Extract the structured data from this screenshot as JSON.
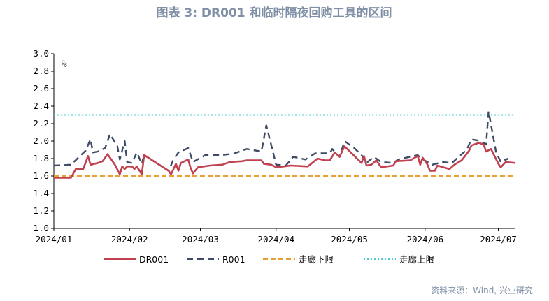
{
  "chart_data": {
    "type": "line",
    "title": "图表 3:   DR001 和临时隔夜回购工具的区间",
    "ylabel": "%",
    "ylim": [
      1.0,
      3.0
    ],
    "yticks": [
      "1.0",
      "1.2",
      "1.4",
      "1.6",
      "1.8",
      "2.0",
      "2.2",
      "2.4",
      "2.6",
      "2.8",
      "3.0"
    ],
    "x_unit": "days since 2024-01-01",
    "xlim": [
      0,
      189
    ],
    "xticks": [
      {
        "label": "2024/01",
        "day": 0
      },
      {
        "label": "2024/02",
        "day": 31
      },
      {
        "label": "2024/03",
        "day": 60
      },
      {
        "label": "2024/04",
        "day": 91
      },
      {
        "label": "2024/05",
        "day": 121
      },
      {
        "label": "2024/06",
        "day": 152
      },
      {
        "label": "2024/07",
        "day": 182
      }
    ],
    "series": [
      {
        "name": "DR001",
        "color": "#c0414f",
        "style": "solid",
        "points": [
          [
            0,
            1.58
          ],
          [
            5,
            1.58
          ],
          [
            7,
            1.58
          ],
          [
            9,
            1.68
          ],
          [
            12,
            1.68
          ],
          [
            14,
            1.83
          ],
          [
            15,
            1.73
          ],
          [
            18,
            1.75
          ],
          [
            20,
            1.77
          ],
          [
            22,
            1.85
          ],
          [
            25,
            1.73
          ],
          [
            27,
            1.62
          ],
          [
            28,
            1.71
          ],
          [
            29,
            1.68
          ],
          [
            30,
            1.71
          ],
          [
            32,
            1.71
          ],
          [
            33,
            1.68
          ],
          [
            34,
            1.71
          ],
          [
            36,
            1.62
          ],
          [
            37,
            1.84
          ],
          [
            47,
            1.66
          ],
          [
            48,
            1.62
          ],
          [
            50,
            1.74
          ],
          [
            51,
            1.66
          ],
          [
            52,
            1.75
          ],
          [
            55,
            1.79
          ],
          [
            56,
            1.69
          ],
          [
            57,
            1.63
          ],
          [
            59,
            1.7
          ],
          [
            64,
            1.72
          ],
          [
            69,
            1.73
          ],
          [
            72,
            1.76
          ],
          [
            77,
            1.77
          ],
          [
            79,
            1.78
          ],
          [
            85,
            1.78
          ],
          [
            86,
            1.74
          ],
          [
            89,
            1.73
          ],
          [
            91,
            1.7
          ],
          [
            94,
            1.71
          ],
          [
            97,
            1.72
          ],
          [
            104,
            1.71
          ],
          [
            108,
            1.8
          ],
          [
            111,
            1.78
          ],
          [
            113,
            1.78
          ],
          [
            115,
            1.87
          ],
          [
            117,
            1.82
          ],
          [
            119,
            1.94
          ],
          [
            126,
            1.75
          ],
          [
            127,
            1.83
          ],
          [
            128,
            1.72
          ],
          [
            130,
            1.73
          ],
          [
            132,
            1.78
          ],
          [
            134,
            1.7
          ],
          [
            139,
            1.72
          ],
          [
            140,
            1.77
          ],
          [
            146,
            1.78
          ],
          [
            149,
            1.83
          ],
          [
            150,
            1.73
          ],
          [
            151,
            1.81
          ],
          [
            153,
            1.73
          ],
          [
            154,
            1.66
          ],
          [
            156,
            1.66
          ],
          [
            157,
            1.72
          ],
          [
            162,
            1.68
          ],
          [
            164,
            1.73
          ],
          [
            167,
            1.78
          ],
          [
            170,
            1.89
          ],
          [
            171,
            1.95
          ],
          [
            174,
            1.98
          ],
          [
            176,
            1.96
          ],
          [
            177,
            1.88
          ],
          [
            179,
            1.91
          ],
          [
            182,
            1.74
          ],
          [
            183,
            1.7
          ],
          [
            185,
            1.76
          ],
          [
            189,
            1.75
          ]
        ]
      },
      {
        "name": "R001",
        "color": "#3d4b66",
        "style": "dashed",
        "points": [
          [
            0,
            1.72
          ],
          [
            7,
            1.73
          ],
          [
            13,
            1.89
          ],
          [
            15,
            2.02
          ],
          [
            16,
            1.87
          ],
          [
            18,
            1.88
          ],
          [
            21,
            1.92
          ],
          [
            23,
            2.08
          ],
          [
            26,
            1.94
          ],
          [
            27,
            1.79
          ],
          [
            29,
            2.0
          ],
          [
            30,
            1.76
          ],
          [
            32,
            1.75
          ],
          [
            34,
            1.87
          ],
          [
            36,
            1.74
          ],
          [
            37,
            1.84
          ],
          [
            47,
            1.66
          ],
          [
            49,
            1.79
          ],
          [
            51,
            1.87
          ],
          [
            55,
            1.92
          ],
          [
            57,
            1.76
          ],
          [
            62,
            1.84
          ],
          [
            69,
            1.84
          ],
          [
            74,
            1.86
          ],
          [
            79,
            1.91
          ],
          [
            85,
            1.88
          ],
          [
            87,
            2.18
          ],
          [
            91,
            1.73
          ],
          [
            95,
            1.72
          ],
          [
            98,
            1.82
          ],
          [
            103,
            1.79
          ],
          [
            107,
            1.86
          ],
          [
            113,
            1.86
          ],
          [
            114,
            1.91
          ],
          [
            117,
            1.82
          ],
          [
            119,
            2.0
          ],
          [
            123,
            1.92
          ],
          [
            126,
            1.84
          ],
          [
            128,
            1.75
          ],
          [
            131,
            1.82
          ],
          [
            134,
            1.76
          ],
          [
            139,
            1.75
          ],
          [
            141,
            1.79
          ],
          [
            149,
            1.84
          ],
          [
            150,
            1.81
          ],
          [
            153,
            1.76
          ],
          [
            155,
            1.73
          ],
          [
            159,
            1.76
          ],
          [
            163,
            1.75
          ],
          [
            169,
            1.9
          ],
          [
            171,
            2.02
          ],
          [
            175,
            2.0
          ],
          [
            177,
            1.96
          ],
          [
            178,
            2.34
          ],
          [
            181,
            1.88
          ],
          [
            183,
            1.76
          ],
          [
            186,
            1.8
          ]
        ]
      },
      {
        "name": "走廊下限",
        "color": "#e9a030",
        "style": "dashed-thick",
        "value": 1.6
      },
      {
        "name": "走廊上限",
        "color": "#4fd0d0",
        "style": "dotted",
        "value": 2.3
      }
    ],
    "legend_position": "bottom",
    "source": "资料来源：Wind, 兴业研究"
  }
}
